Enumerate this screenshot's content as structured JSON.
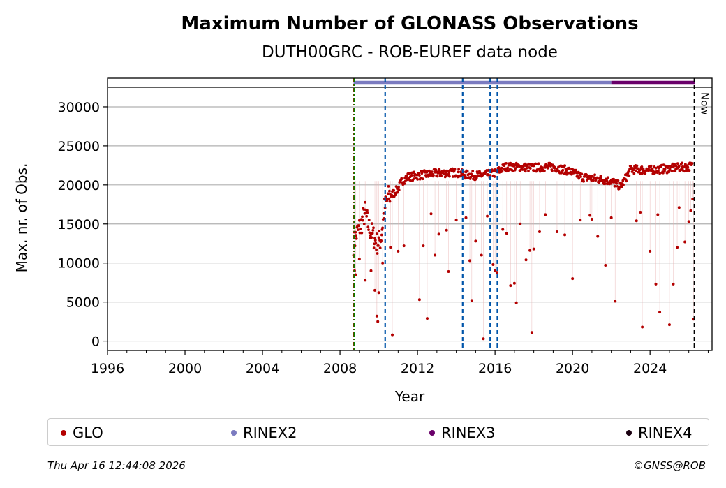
{
  "chart_data": {
    "type": "scatter",
    "title": "Maximum Number of GLONASS Observations",
    "subtitle": "DUTH00GRC - ROB-EUREF data node",
    "xlabel": "Year",
    "ylabel": "Max. nr. of Obs.",
    "xlim": [
      1996,
      2027.2
    ],
    "ylim": [
      -1200,
      32500
    ],
    "x_ticks": [
      1996,
      2000,
      2004,
      2008,
      2012,
      2016,
      2020,
      2024
    ],
    "y_ticks": [
      0,
      5000,
      10000,
      15000,
      20000,
      25000,
      30000
    ],
    "grid": "horizontal",
    "series": [
      {
        "name": "GLO",
        "color": "#b30000",
        "trend": [
          [
            2008.7,
            12500
          ],
          [
            2008.9,
            14000
          ],
          [
            2009.1,
            15000
          ],
          [
            2009.3,
            16500
          ],
          [
            2009.5,
            14500
          ],
          [
            2009.7,
            13500
          ],
          [
            2009.9,
            12500
          ],
          [
            2010.1,
            13000
          ],
          [
            2010.3,
            17000
          ],
          [
            2010.5,
            18500
          ],
          [
            2010.8,
            19000
          ],
          [
            2011.0,
            19500
          ],
          [
            2011.2,
            20500
          ],
          [
            2011.5,
            21000
          ],
          [
            2012.0,
            21200
          ],
          [
            2013.0,
            21500
          ],
          [
            2014.0,
            21600
          ],
          [
            2014.5,
            21300
          ],
          [
            2015.0,
            21200
          ],
          [
            2015.5,
            21300
          ],
          [
            2016.0,
            21500
          ],
          [
            2016.5,
            22300
          ],
          [
            2017.0,
            22300
          ],
          [
            2018.0,
            22200
          ],
          [
            2019.0,
            22300
          ],
          [
            2019.8,
            21800
          ],
          [
            2020.5,
            21000
          ],
          [
            2021.2,
            20800
          ],
          [
            2022.0,
            20500
          ],
          [
            2022.5,
            19800
          ],
          [
            2023.0,
            22000
          ],
          [
            2024.0,
            21900
          ],
          [
            2025.0,
            22100
          ],
          [
            2026.2,
            22400
          ]
        ],
        "outliers": [
          [
            2008.75,
            9000
          ],
          [
            2008.8,
            8500
          ],
          [
            2009.0,
            10500
          ],
          [
            2009.3,
            7800
          ],
          [
            2009.6,
            9000
          ],
          [
            2009.8,
            6500
          ],
          [
            2009.9,
            3200
          ],
          [
            2009.95,
            2500
          ],
          [
            2010.0,
            6200
          ],
          [
            2010.2,
            10000
          ],
          [
            2010.6,
            12000
          ],
          [
            2010.7,
            800
          ],
          [
            2011.0,
            11500
          ],
          [
            2011.3,
            12200
          ],
          [
            2012.1,
            5300
          ],
          [
            2012.3,
            12200
          ],
          [
            2012.5,
            2900
          ],
          [
            2012.7,
            16300
          ],
          [
            2012.9,
            11000
          ],
          [
            2013.1,
            13700
          ],
          [
            2013.5,
            14200
          ],
          [
            2013.6,
            8900
          ],
          [
            2014.0,
            15500
          ],
          [
            2014.5,
            15800
          ],
          [
            2014.7,
            10300
          ],
          [
            2014.8,
            5200
          ],
          [
            2015.0,
            12800
          ],
          [
            2015.3,
            11000
          ],
          [
            2015.4,
            300
          ],
          [
            2015.6,
            16000
          ],
          [
            2015.9,
            9800
          ],
          [
            2016.0,
            9000
          ],
          [
            2016.1,
            8800
          ],
          [
            2016.4,
            14300
          ],
          [
            2016.6,
            13800
          ],
          [
            2016.8,
            7100
          ],
          [
            2017.0,
            7400
          ],
          [
            2017.1,
            4900
          ],
          [
            2017.3,
            15000
          ],
          [
            2017.6,
            10400
          ],
          [
            2017.8,
            11600
          ],
          [
            2017.9,
            1100
          ],
          [
            2018.0,
            11800
          ],
          [
            2018.3,
            14000
          ],
          [
            2018.6,
            16200
          ],
          [
            2019.2,
            14000
          ],
          [
            2019.6,
            13600
          ],
          [
            2020.0,
            8000
          ],
          [
            2020.4,
            15500
          ],
          [
            2020.9,
            16100
          ],
          [
            2021.0,
            15600
          ],
          [
            2021.3,
            13400
          ],
          [
            2021.7,
            9700
          ],
          [
            2022.0,
            15800
          ],
          [
            2022.2,
            5100
          ],
          [
            2023.3,
            15400
          ],
          [
            2023.5,
            16500
          ],
          [
            2023.6,
            1800
          ],
          [
            2024.0,
            11500
          ],
          [
            2024.3,
            7300
          ],
          [
            2024.4,
            16200
          ],
          [
            2024.5,
            3700
          ],
          [
            2025.0,
            2100
          ],
          [
            2025.2,
            7300
          ],
          [
            2025.4,
            12000
          ],
          [
            2025.5,
            17100
          ],
          [
            2025.8,
            12700
          ],
          [
            2026.0,
            15300
          ],
          [
            2026.1,
            16700
          ],
          [
            2026.2,
            18200
          ],
          [
            2026.25,
            2800
          ]
        ]
      },
      {
        "name": "RINEX2",
        "color": "#7b7bc0",
        "bar_range": [
          2008.7,
          2022.0
        ]
      },
      {
        "name": "RINEX3",
        "color": "#6a006a",
        "bar_range": [
          2022.0,
          2026.3
        ]
      },
      {
        "name": "RINEX4",
        "color": "#1a0010",
        "bar_range": []
      }
    ],
    "vertical_lines": [
      {
        "x": 2008.72,
        "color": "#cc0000",
        "style": "dashdot"
      },
      {
        "x": 2008.74,
        "color": "#008800",
        "style": "dashdot"
      },
      {
        "x": 2010.33,
        "color": "#0055aa",
        "style": "dashed"
      },
      {
        "x": 2014.33,
        "color": "#0055aa",
        "style": "dashed"
      },
      {
        "x": 2015.75,
        "color": "#0055aa",
        "style": "dashed"
      },
      {
        "x": 2016.12,
        "color": "#0055aa",
        "style": "dashed"
      },
      {
        "x": 2026.29,
        "color": "#000000",
        "style": "dashed"
      }
    ],
    "now_label": "Now",
    "legend_position": "bottom"
  },
  "legend": [
    {
      "label": "GLO",
      "color": "#b30000"
    },
    {
      "label": "RINEX2",
      "color": "#7b7bc0"
    },
    {
      "label": "RINEX3",
      "color": "#6a006a"
    },
    {
      "label": "RINEX4",
      "color": "#1a0010"
    }
  ],
  "footer": {
    "timestamp": "Thu Apr 16 12:44:08 2026",
    "credit": "©GNSS@ROB"
  }
}
